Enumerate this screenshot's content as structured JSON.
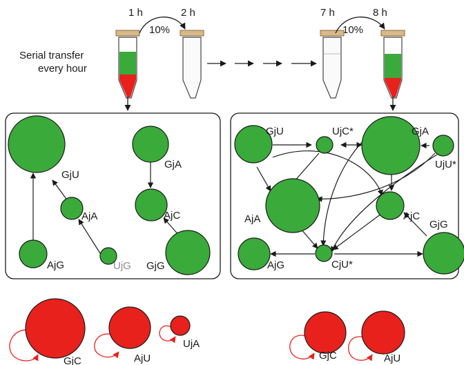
{
  "header": {
    "time_labels": [
      "1 h",
      "2 h",
      "7 h",
      "8 h"
    ],
    "transfer_labels": [
      "10%",
      "10%"
    ],
    "serial_line1": "Serial transfer",
    "serial_line2": "every hour"
  },
  "colors": {
    "green": "#3aaa3a",
    "red": "#e8211d",
    "stroke": "#1a1a1a",
    "muted": "#8c8c8c"
  },
  "left_panel": {
    "nodes": [
      {
        "id": "GjU",
        "label": "GjU"
      },
      {
        "id": "AjA",
        "label": "AjA"
      },
      {
        "id": "AjG",
        "label": "AjG"
      },
      {
        "id": "UjG",
        "label": "UjG"
      },
      {
        "id": "GjA",
        "label": "GjA"
      },
      {
        "id": "AjC",
        "label": "AjC"
      },
      {
        "id": "GjG",
        "label": "GjG"
      }
    ]
  },
  "right_panel": {
    "nodes": [
      {
        "id": "GjU",
        "label": "GjU"
      },
      {
        "id": "UjC",
        "label": "UjC*"
      },
      {
        "id": "GjA",
        "label": "GjA"
      },
      {
        "id": "UjU",
        "label": "UjU*"
      },
      {
        "id": "AjA",
        "label": "AjA"
      },
      {
        "id": "AjC",
        "label": "AjC"
      },
      {
        "id": "GjG",
        "label": "GjG"
      },
      {
        "id": "AjG",
        "label": "AjG"
      },
      {
        "id": "CjU",
        "label": "CjU*"
      }
    ]
  },
  "self_replicators_left": [
    {
      "label": "GjC"
    },
    {
      "label": "AjU"
    },
    {
      "label": "UjA"
    }
  ],
  "self_replicators_right": [
    {
      "label": "GjC"
    },
    {
      "label": "AjU"
    }
  ]
}
